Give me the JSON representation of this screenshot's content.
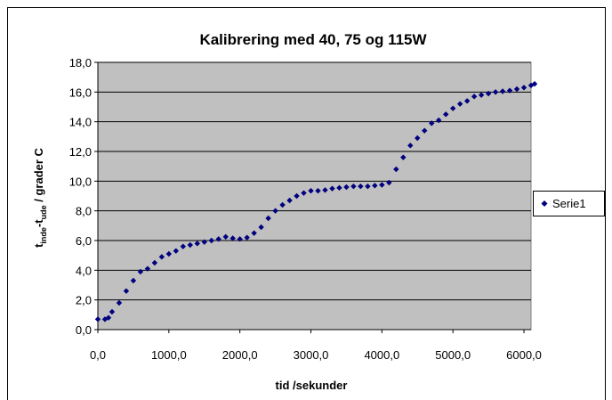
{
  "chart_data": {
    "type": "scatter",
    "title": "Kalibrering med 40, 75 og 115W",
    "xlabel": "tid /sekunder",
    "ylabel_parts": [
      "t",
      "inde",
      "-t",
      "ude",
      " / grader C"
    ],
    "xlim": [
      0,
      6100
    ],
    "ylim": [
      0,
      18
    ],
    "xticks": [
      {
        "value": 0,
        "label": "0,0"
      },
      {
        "value": 1000,
        "label": "1000,0"
      },
      {
        "value": 2000,
        "label": "2000,0"
      },
      {
        "value": 3000,
        "label": "3000,0"
      },
      {
        "value": 4000,
        "label": "4000,0"
      },
      {
        "value": 5000,
        "label": "5000,0"
      },
      {
        "value": 6000,
        "label": "6000,0"
      }
    ],
    "yticks": [
      {
        "value": 0,
        "label": "0,0"
      },
      {
        "value": 2,
        "label": "2,0"
      },
      {
        "value": 4,
        "label": "4,0"
      },
      {
        "value": 6,
        "label": "6,0"
      },
      {
        "value": 8,
        "label": "8,0"
      },
      {
        "value": 10,
        "label": "10,0"
      },
      {
        "value": 12,
        "label": "12,0"
      },
      {
        "value": 14,
        "label": "14,0"
      },
      {
        "value": 16,
        "label": "16,0"
      },
      {
        "value": 18,
        "label": "18,0"
      }
    ],
    "grid": true,
    "legend": "right",
    "series": [
      {
        "name": "Serie1",
        "color": "#000080",
        "x": [
          0,
          100,
          150,
          200,
          300,
          400,
          500,
          600,
          700,
          800,
          900,
          1000,
          1100,
          1200,
          1300,
          1400,
          1500,
          1600,
          1700,
          1800,
          1900,
          2000,
          2100,
          2200,
          2300,
          2400,
          2500,
          2600,
          2700,
          2800,
          2900,
          3000,
          3100,
          3200,
          3300,
          3400,
          3500,
          3600,
          3700,
          3800,
          3900,
          4000,
          4100,
          4200,
          4300,
          4400,
          4500,
          4600,
          4700,
          4800,
          4900,
          5000,
          5100,
          5200,
          5300,
          5400,
          5500,
          5600,
          5700,
          5800,
          5900,
          6000,
          6100,
          6150
        ],
        "values": [
          0.7,
          0.7,
          0.8,
          1.2,
          1.8,
          2.6,
          3.3,
          3.9,
          4.1,
          4.5,
          4.9,
          5.1,
          5.3,
          5.6,
          5.7,
          5.8,
          5.9,
          6.0,
          6.1,
          6.25,
          6.15,
          6.1,
          6.2,
          6.5,
          6.9,
          7.5,
          8.0,
          8.4,
          8.7,
          9.0,
          9.2,
          9.35,
          9.35,
          9.4,
          9.5,
          9.55,
          9.6,
          9.65,
          9.65,
          9.65,
          9.7,
          9.75,
          9.9,
          10.8,
          11.6,
          12.4,
          12.9,
          13.4,
          13.9,
          14.1,
          14.5,
          14.9,
          15.2,
          15.4,
          15.7,
          15.8,
          15.9,
          16.0,
          16.05,
          16.1,
          16.2,
          16.3,
          16.45,
          16.55
        ]
      }
    ]
  }
}
